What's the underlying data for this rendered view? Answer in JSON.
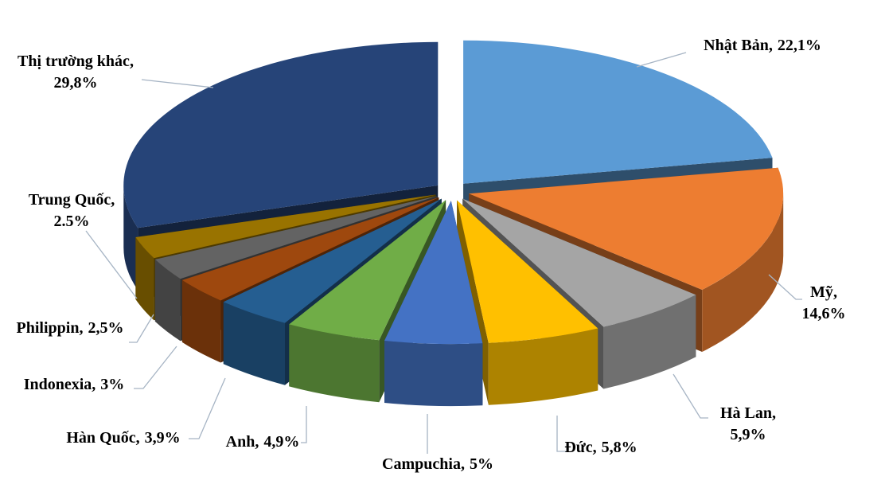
{
  "chart_data": {
    "type": "pie3d",
    "categories": [
      "Nhật Bản",
      "Mỹ",
      "Hà Lan",
      "Đức",
      "Campuchia",
      "Anh",
      "Hàn Quốc",
      "Indonexia",
      "Philippin",
      "Trung Quốc",
      "Thị trường khác"
    ],
    "values": [
      22.1,
      14.6,
      5.9,
      5.8,
      5,
      4.9,
      3.9,
      3,
      2.5,
      2.5,
      29.8
    ],
    "value_labels": [
      "22,1%",
      "14,6%",
      "5,9%",
      "5,8%",
      "5%",
      "4,9%",
      "3,9%",
      "3%",
      "2,5%",
      "2.5%",
      "29,8%"
    ],
    "label_separator": ",",
    "colors": [
      "#5b9bd5",
      "#ed7d31",
      "#a5a5a5",
      "#ffc000",
      "#4472c4",
      "#70ad47",
      "#255e91",
      "#9e480e",
      "#636363",
      "#997300",
      "#264478"
    ]
  }
}
